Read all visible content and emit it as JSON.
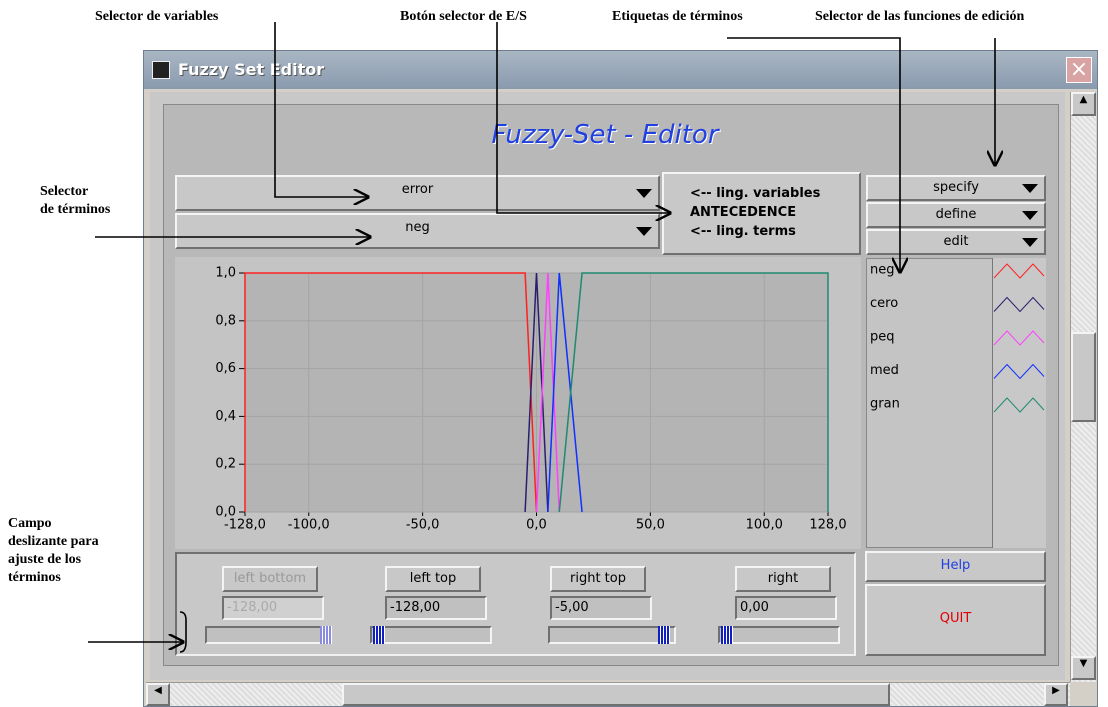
{
  "annotations": [
    {
      "lines": [
        "Selector de variables"
      ]
    },
    {
      "lines": [
        "Botón selector de E/S"
      ]
    },
    {
      "lines": [
        "Etiquetas de términos"
      ]
    },
    {
      "lines": [
        "Selector de las funciones de edición"
      ]
    },
    {
      "lines": [
        "Selector",
        "de términos"
      ]
    },
    {
      "lines": [
        "Campo",
        "deslizante para",
        "ajuste de los",
        "términos"
      ]
    }
  ],
  "window_title": "Fuzzy Set Editor",
  "editor_title": "Fuzzy-Set - Editor",
  "variable_selector": "error",
  "term_selector": "neg",
  "io_button": [
    "<-- ling. variables",
    "ANTECEDENCE",
    "<-- ling. terms"
  ],
  "function_selectors": [
    "specify",
    "define",
    "edit"
  ],
  "sliders": [
    {
      "label": "left bottom",
      "value": "-128,00"
    },
    {
      "label": "left top",
      "value": "-128,00"
    },
    {
      "label": "right top",
      "value": "-5,00"
    },
    {
      "label": "right",
      "value": "0,00"
    }
  ],
  "help": "Help",
  "quit": "QUIT",
  "chart_data": {
    "type": "line",
    "xlim": [
      -128,
      128
    ],
    "ylim": [
      0,
      1
    ],
    "xticks": [
      {
        "value": -128,
        "label": "-128,0"
      },
      {
        "value": -100,
        "label": "-100,0"
      },
      {
        "value": -50,
        "label": "-50,0"
      },
      {
        "value": 0,
        "label": "0,0"
      },
      {
        "value": 50,
        "label": "50,0"
      },
      {
        "value": 100,
        "label": "100,0"
      },
      {
        "value": 128,
        "label": "128,0"
      }
    ],
    "yticks": [
      {
        "value": 0,
        "label": "0,0"
      },
      {
        "value": 0.2,
        "label": "0,2"
      },
      {
        "value": 0.4,
        "label": "0,4"
      },
      {
        "value": 0.6,
        "label": "0,6"
      },
      {
        "value": 0.8,
        "label": "0,8"
      },
      {
        "value": 1,
        "label": "1,0"
      }
    ],
    "grid": true,
    "series": [
      {
        "name": "neg",
        "color": "#ff2020",
        "x": [
          -128,
          -128,
          -5,
          0
        ],
        "values": [
          0,
          1,
          1,
          0
        ]
      },
      {
        "name": "cero",
        "color": "#2a1f6e",
        "x": [
          -5,
          0,
          5
        ],
        "values": [
          0,
          1,
          0
        ]
      },
      {
        "name": "peq",
        "color": "#ff40ff",
        "x": [
          0,
          5,
          10
        ],
        "values": [
          0,
          1,
          0
        ]
      },
      {
        "name": "med",
        "color": "#1030ff",
        "x": [
          5,
          10,
          20
        ],
        "values": [
          0,
          1,
          0
        ]
      },
      {
        "name": "gran",
        "color": "#1f8a70",
        "x": [
          10,
          20,
          128,
          128
        ],
        "values": [
          0,
          1,
          1,
          0
        ]
      }
    ]
  }
}
